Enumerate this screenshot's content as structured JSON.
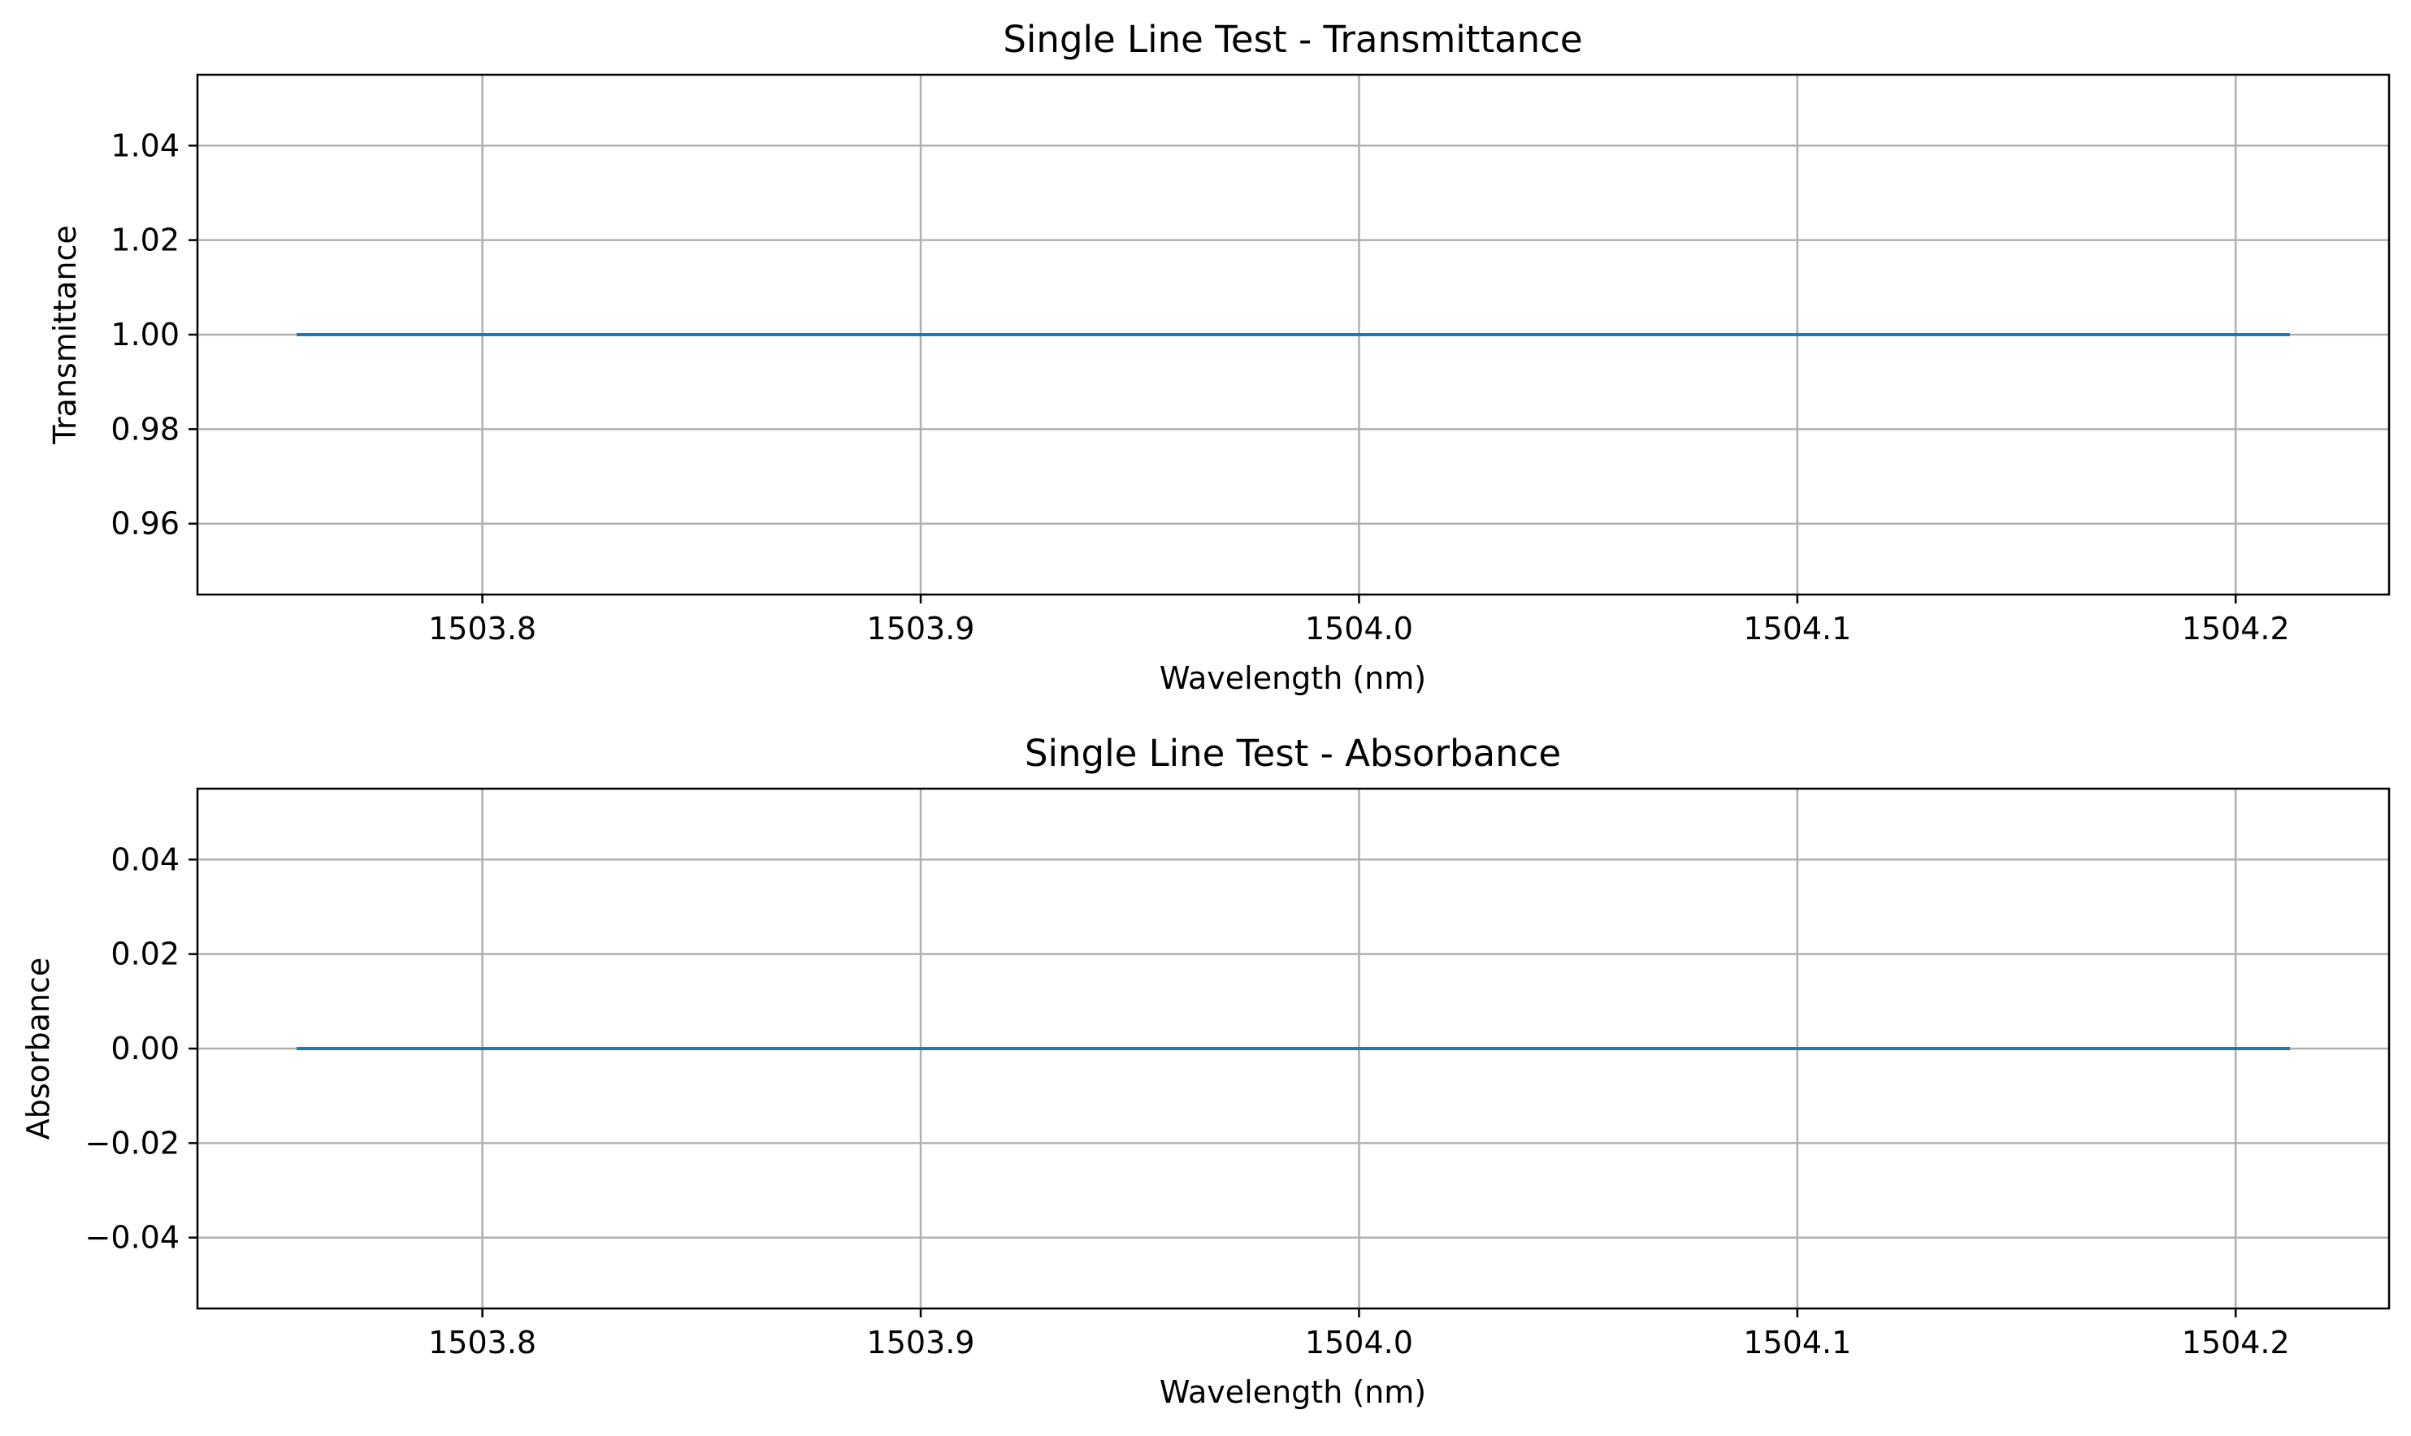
{
  "figure": {
    "background": "#ffffff",
    "grid_color": "#b0b0b0",
    "spine_color": "#000000"
  },
  "chart_data": [
    {
      "type": "line",
      "title": "Single Line Test - Transmittance",
      "xlabel": "Wavelength (nm)",
      "ylabel": "Transmittance",
      "xlim": [
        1503.735,
        1504.235
      ],
      "ylim": [
        0.945,
        1.055
      ],
      "xticks": [
        1503.8,
        1503.9,
        1504.0,
        1504.1,
        1504.2
      ],
      "xtick_labels": [
        "1503.8",
        "1503.9",
        "1504.0",
        "1504.1",
        "1504.2"
      ],
      "yticks": [
        0.96,
        0.98,
        1.0,
        1.02,
        1.04
      ],
      "ytick_labels": [
        "0.96",
        "0.98",
        "1.00",
        "1.02",
        "1.04"
      ],
      "grid": true,
      "series": [
        {
          "color": "#1f77b4",
          "x": [
            1503.758,
            1504.212
          ],
          "y": [
            1.0,
            1.0
          ]
        }
      ]
    },
    {
      "type": "line",
      "title": "Single Line Test - Absorbance",
      "xlabel": "Wavelength (nm)",
      "ylabel": "Absorbance",
      "xlim": [
        1503.735,
        1504.235
      ],
      "ylim": [
        -0.055,
        0.055
      ],
      "xticks": [
        1503.8,
        1503.9,
        1504.0,
        1504.1,
        1504.2
      ],
      "xtick_labels": [
        "1503.8",
        "1503.9",
        "1504.0",
        "1504.1",
        "1504.2"
      ],
      "yticks": [
        -0.04,
        -0.02,
        0.0,
        0.02,
        0.04
      ],
      "ytick_labels": [
        "−0.04",
        "−0.02",
        "0.00",
        "0.02",
        "0.04"
      ],
      "grid": true,
      "series": [
        {
          "color": "#1f77b4",
          "x": [
            1503.758,
            1504.212
          ],
          "y": [
            0.0,
            0.0
          ]
        }
      ]
    }
  ]
}
